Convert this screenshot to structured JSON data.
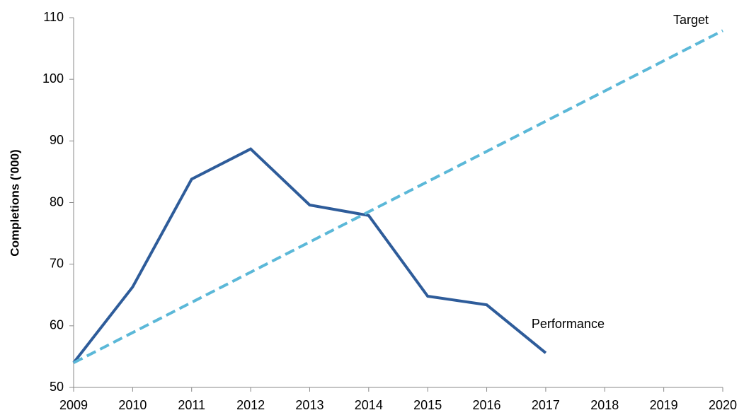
{
  "chart_data": {
    "type": "line",
    "y_label": "Completions  ('000)",
    "x": [
      2009,
      2010,
      2011,
      2012,
      2013,
      2014,
      2015,
      2016,
      2017,
      2018,
      2019,
      2020
    ],
    "series": [
      {
        "name": "Performance",
        "color": "#2e5c9a",
        "line_style": "solid",
        "values": [
          54,
          66.3,
          83.8,
          88.7,
          79.6,
          77.9,
          64.8,
          63.4,
          55.6,
          null,
          null,
          null
        ]
      },
      {
        "name": "Target",
        "color": "#5bb8d8",
        "line_style": "dashed",
        "values": [
          54,
          58.9,
          63.8,
          68.7,
          73.6,
          78.5,
          83.4,
          88.3,
          93.2,
          98.1,
          103.0,
          107.9
        ]
      }
    ],
    "xlim": [
      2009,
      2020
    ],
    "xticks": [
      2009,
      2010,
      2011,
      2012,
      2013,
      2014,
      2015,
      2016,
      2017,
      2018,
      2019,
      2020
    ],
    "ylim": [
      50,
      110
    ],
    "yticks": [
      50,
      60,
      70,
      80,
      90,
      100,
      110
    ],
    "grid": false
  }
}
